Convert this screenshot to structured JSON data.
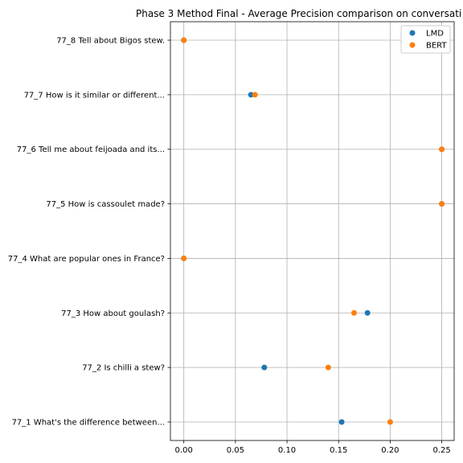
{
  "chart_data": {
    "type": "scatter",
    "title": "Phase 3 Method Final - Average Precision comparison on conversati",
    "xlabel": "",
    "ylabel": "",
    "xlim": [
      -0.013,
      0.262
    ],
    "xticks": [
      "0.00",
      "0.05",
      "0.10",
      "0.15",
      "0.20",
      "0.25"
    ],
    "xtick_values": [
      0.0,
      0.05,
      0.1,
      0.15,
      0.2,
      0.25
    ],
    "categories": [
      "77_8 Tell about Bigos stew.",
      "77_7 How is it similar or different...",
      "77_6 Tell me about feijoada and its...",
      "77_5 How is cassoulet made?",
      "77_4 What are popular ones in France?",
      "77_3 How about goulash?",
      "77_2 Is chilli a stew?",
      "77_1 What's the difference between..."
    ],
    "grid": true,
    "legend_position": "top-right",
    "series": [
      {
        "name": "LMD",
        "color": "#1f77b4",
        "values": [
          0.0,
          0.065,
          0.25,
          0.25,
          0.0,
          0.178,
          0.078,
          0.153
        ]
      },
      {
        "name": "BERT",
        "color": "#ff7f0e",
        "values": [
          0.0,
          0.069,
          0.25,
          0.25,
          0.0,
          0.165,
          0.14,
          0.2
        ]
      }
    ]
  }
}
